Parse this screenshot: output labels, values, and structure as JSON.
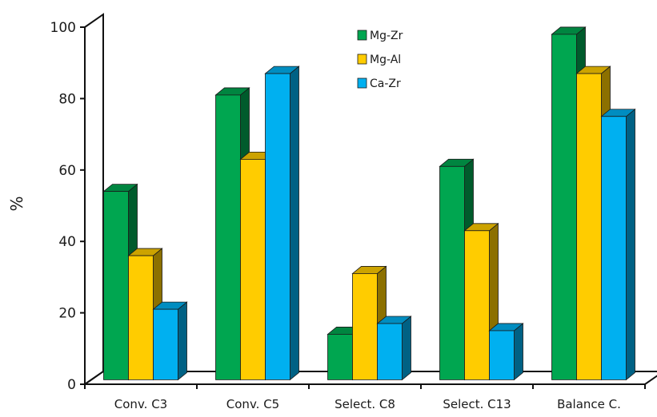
{
  "chart_data": {
    "type": "bar",
    "ylabel": "%",
    "ylim": [
      0,
      100
    ],
    "y_ticks": [
      "0",
      "20",
      "40",
      "60",
      "80",
      "100"
    ],
    "categories": [
      "Conv. C3",
      "Conv. C5",
      "Select. C8",
      "Select. C13",
      "Balance C."
    ],
    "series": [
      {
        "name": "Mg-Zr",
        "color": "#00a650",
        "values": [
          54,
          81,
          14,
          61,
          98
        ]
      },
      {
        "name": "Mg-Al",
        "color": "#ffcc00",
        "values": [
          36,
          63,
          31,
          43,
          87
        ]
      },
      {
        "name": "Ca-Zr",
        "color": "#00b0f0",
        "values": [
          21,
          87,
          17,
          15,
          75
        ]
      }
    ],
    "legend_position": "top-center",
    "grid": false,
    "style": "3d-clustered-column"
  }
}
